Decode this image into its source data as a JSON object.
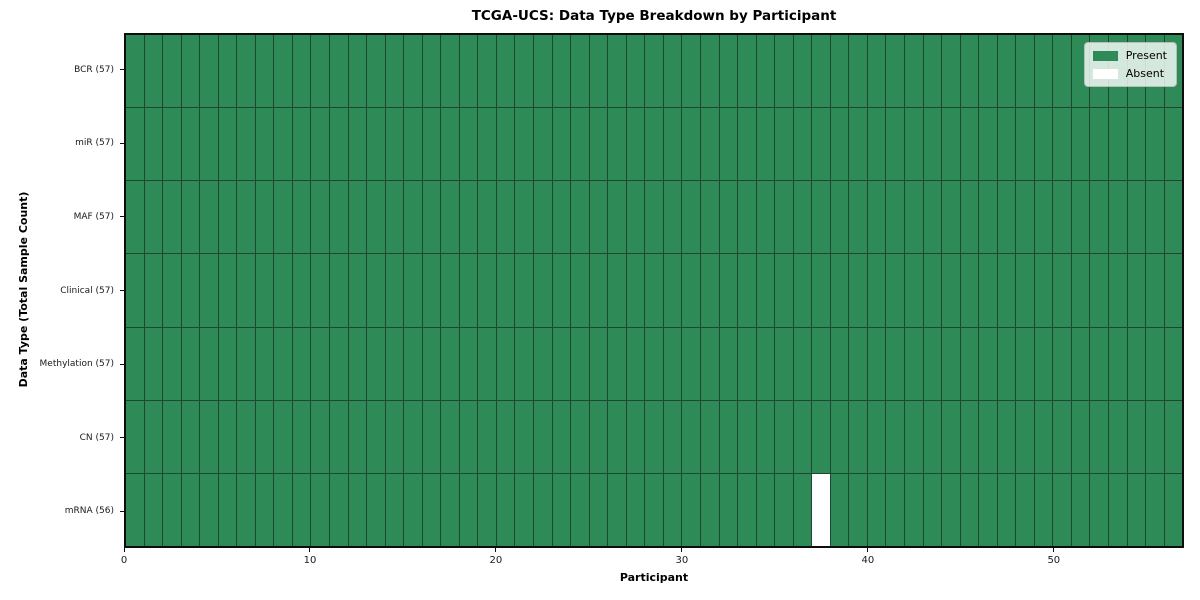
{
  "chart_data": {
    "type": "heatmap",
    "title": "TCGA-UCS: Data Type Breakdown by Participant",
    "xlabel": "Participant",
    "ylabel": "Data Type (Total Sample Count)",
    "n_participants": 57,
    "xlim": [
      0,
      57
    ],
    "x_ticks": [
      0,
      10,
      20,
      30,
      40,
      50
    ],
    "rows": [
      {
        "data_type": "BCR",
        "label": "BCR (57)",
        "sample_count": 57,
        "absent_participant_indices": []
      },
      {
        "data_type": "miR",
        "label": "miR (57)",
        "sample_count": 57,
        "absent_participant_indices": []
      },
      {
        "data_type": "MAF",
        "label": "MAF (57)",
        "sample_count": 57,
        "absent_participant_indices": []
      },
      {
        "data_type": "Clinical",
        "label": "Clinical (57)",
        "sample_count": 57,
        "absent_participant_indices": []
      },
      {
        "data_type": "Methylation",
        "label": "Methylation (57)",
        "sample_count": 57,
        "absent_participant_indices": []
      },
      {
        "data_type": "CN",
        "label": "CN (57)",
        "sample_count": 57,
        "absent_participant_indices": []
      },
      {
        "data_type": "mRNA",
        "label": "mRNA (56)",
        "sample_count": 56,
        "absent_participant_indices": [
          37
        ]
      }
    ],
    "legend": [
      {
        "label": "Present",
        "color": "#2e8b57"
      },
      {
        "label": "Absent",
        "color": "#ffffff"
      }
    ],
    "legend_position": "upper right",
    "colors": {
      "present": "#2e8b57",
      "absent": "#ffffff",
      "grid_line": "#1f4631",
      "spine": "#0d0d0d"
    },
    "grid": true
  }
}
